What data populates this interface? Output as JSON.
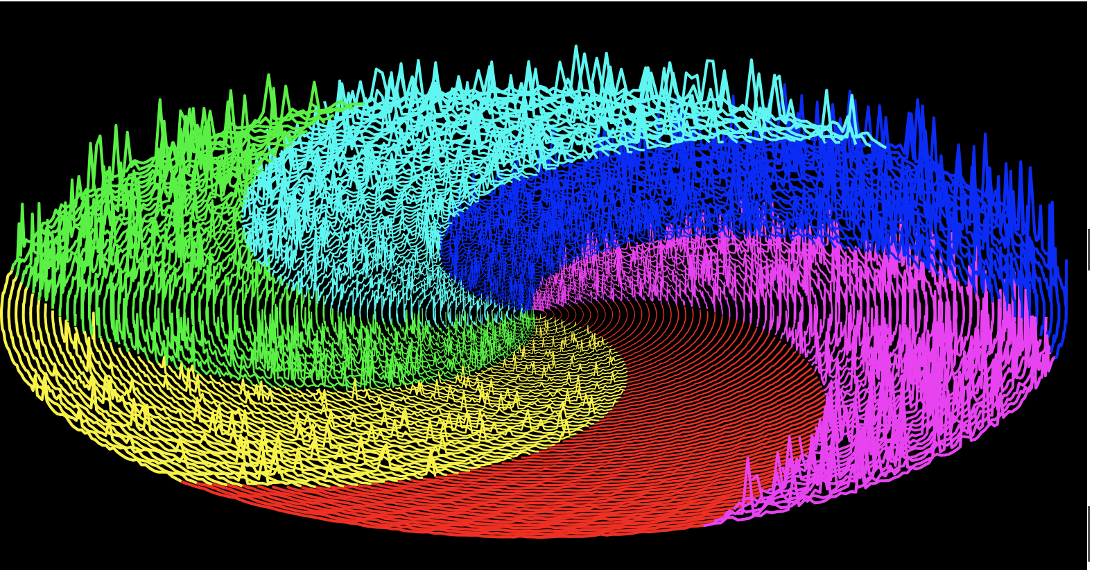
{
  "visualization": {
    "kind": "spiral radial waveform rings",
    "background_color": "#000000",
    "ring_count": 72,
    "segments": [
      {
        "name": "magenta",
        "color": "#e843f0"
      },
      {
        "name": "red",
        "color": "#ee3024"
      },
      {
        "name": "yellow",
        "color": "#f7f24a"
      },
      {
        "name": "green",
        "color": "#5af045"
      },
      {
        "name": "cyan",
        "color": "#5ff5f0"
      },
      {
        "name": "blue",
        "color": "#0b2cf5"
      }
    ]
  }
}
